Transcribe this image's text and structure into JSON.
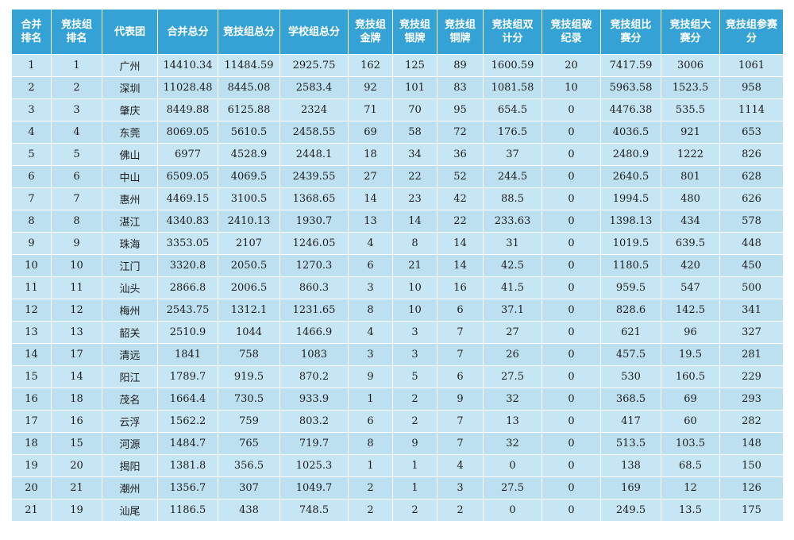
{
  "table": {
    "headers": [
      "合并排名",
      "竞技组排名",
      "代表团",
      "合并总分",
      "竞技组总分",
      "学校组总分",
      "竞技组金牌",
      "竞技组银牌",
      "竞技组铜牌",
      "竞技组双计分",
      "竞技组破纪录",
      "竞技组比赛分",
      "竞技组大赛分",
      "竞技组参赛分"
    ],
    "rows": [
      [
        "1",
        "1",
        "广州",
        "14410.34",
        "11484.59",
        "2925.75",
        "162",
        "125",
        "89",
        "1600.59",
        "20",
        "7417.59",
        "3006",
        "1061"
      ],
      [
        "2",
        "2",
        "深圳",
        "11028.48",
        "8445.08",
        "2583.4",
        "92",
        "101",
        "83",
        "1081.58",
        "10",
        "5963.58",
        "1523.5",
        "958"
      ],
      [
        "3",
        "3",
        "肇庆",
        "8449.88",
        "6125.88",
        "2324",
        "71",
        "70",
        "95",
        "654.5",
        "0",
        "4476.38",
        "535.5",
        "1114"
      ],
      [
        "4",
        "4",
        "东莞",
        "8069.05",
        "5610.5",
        "2458.55",
        "69",
        "58",
        "72",
        "176.5",
        "0",
        "4036.5",
        "921",
        "653"
      ],
      [
        "5",
        "5",
        "佛山",
        "6977",
        "4528.9",
        "2448.1",
        "18",
        "34",
        "36",
        "37",
        "0",
        "2480.9",
        "1222",
        "826"
      ],
      [
        "6",
        "6",
        "中山",
        "6509.05",
        "4069.5",
        "2439.55",
        "27",
        "22",
        "52",
        "244.5",
        "0",
        "2640.5",
        "801",
        "628"
      ],
      [
        "7",
        "7",
        "惠州",
        "4469.15",
        "3100.5",
        "1368.65",
        "14",
        "23",
        "42",
        "88.5",
        "0",
        "1994.5",
        "480",
        "626"
      ],
      [
        "8",
        "8",
        "湛江",
        "4340.83",
        "2410.13",
        "1930.7",
        "13",
        "14",
        "22",
        "233.63",
        "0",
        "1398.13",
        "434",
        "578"
      ],
      [
        "9",
        "9",
        "珠海",
        "3353.05",
        "2107",
        "1246.05",
        "4",
        "8",
        "14",
        "31",
        "0",
        "1019.5",
        "639.5",
        "448"
      ],
      [
        "10",
        "10",
        "江门",
        "3320.8",
        "2050.5",
        "1270.3",
        "6",
        "21",
        "14",
        "42.5",
        "0",
        "1180.5",
        "420",
        "450"
      ],
      [
        "11",
        "11",
        "汕头",
        "2866.8",
        "2006.5",
        "860.3",
        "3",
        "10",
        "16",
        "41.5",
        "0",
        "959.5",
        "547",
        "500"
      ],
      [
        "12",
        "12",
        "梅州",
        "2543.75",
        "1312.1",
        "1231.65",
        "8",
        "10",
        "6",
        "37.1",
        "0",
        "828.6",
        "142.5",
        "341"
      ],
      [
        "13",
        "13",
        "韶关",
        "2510.9",
        "1044",
        "1466.9",
        "4",
        "3",
        "7",
        "27",
        "0",
        "621",
        "96",
        "327"
      ],
      [
        "14",
        "17",
        "清远",
        "1841",
        "758",
        "1083",
        "3",
        "3",
        "7",
        "26",
        "0",
        "457.5",
        "19.5",
        "281"
      ],
      [
        "15",
        "14",
        "阳江",
        "1789.7",
        "919.5",
        "870.2",
        "9",
        "5",
        "6",
        "27.5",
        "0",
        "530",
        "160.5",
        "229"
      ],
      [
        "16",
        "18",
        "茂名",
        "1664.4",
        "730.5",
        "933.9",
        "1",
        "2",
        "9",
        "32",
        "0",
        "368.5",
        "69",
        "293"
      ],
      [
        "17",
        "16",
        "云浮",
        "1562.2",
        "759",
        "803.2",
        "6",
        "2",
        "7",
        "13",
        "0",
        "417",
        "60",
        "282"
      ],
      [
        "18",
        "15",
        "河源",
        "1484.7",
        "765",
        "719.7",
        "8",
        "9",
        "7",
        "32",
        "0",
        "513.5",
        "103.5",
        "148"
      ],
      [
        "19",
        "20",
        "揭阳",
        "1381.8",
        "356.5",
        "1025.3",
        "1",
        "1",
        "4",
        "0",
        "0",
        "138",
        "68.5",
        "150"
      ],
      [
        "20",
        "21",
        "潮州",
        "1356.7",
        "307",
        "1049.7",
        "2",
        "1",
        "3",
        "27.5",
        "0",
        "169",
        "12",
        "126"
      ],
      [
        "21",
        "19",
        "汕尾",
        "1186.5",
        "438",
        "748.5",
        "2",
        "2",
        "2",
        "0",
        "0",
        "249.5",
        "13.5",
        "175"
      ]
    ]
  },
  "colors": {
    "header_bg": "#35a2d6",
    "header_text": "#ffffff",
    "row_bg": "#c7e6f5",
    "row_alt_bg": "#bde0f1",
    "grid_line": "#ffffff"
  }
}
